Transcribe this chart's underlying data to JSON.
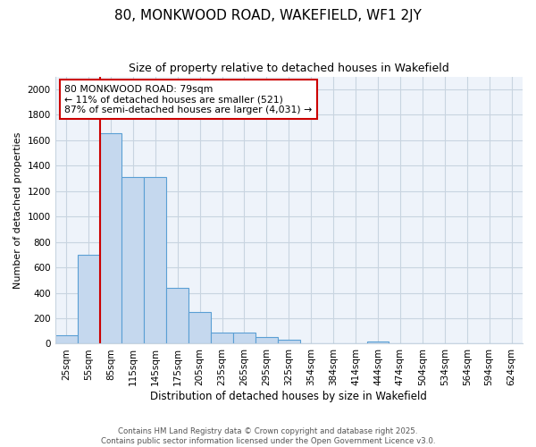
{
  "title": "80, MONKWOOD ROAD, WAKEFIELD, WF1 2JY",
  "subtitle": "Size of property relative to detached houses in Wakefield",
  "xlabel": "Distribution of detached houses by size in Wakefield",
  "ylabel": "Number of detached properties",
  "footer_line1": "Contains HM Land Registry data © Crown copyright and database right 2025.",
  "footer_line2": "Contains public sector information licensed under the Open Government Licence v3.0.",
  "categories": [
    "25sqm",
    "55sqm",
    "85sqm",
    "115sqm",
    "145sqm",
    "175sqm",
    "205sqm",
    "235sqm",
    "265sqm",
    "295sqm",
    "325sqm",
    "354sqm",
    "384sqm",
    "414sqm",
    "444sqm",
    "474sqm",
    "504sqm",
    "534sqm",
    "564sqm",
    "594sqm",
    "624sqm"
  ],
  "values": [
    65,
    700,
    1655,
    1310,
    1310,
    440,
    250,
    90,
    85,
    50,
    30,
    0,
    0,
    0,
    20,
    0,
    0,
    0,
    0,
    0,
    0
  ],
  "bar_color": "#c5d8ee",
  "bar_edge_color": "#5a9fd4",
  "plot_bg_color": "#eef3fa",
  "background_color": "#ffffff",
  "grid_color": "#c8d4e0",
  "annotation_text": "80 MONKWOOD ROAD: 79sqm\n← 11% of detached houses are smaller (521)\n87% of semi-detached houses are larger (4,031) →",
  "annotation_box_color": "#ffffff",
  "annotation_box_edge": "#cc0000",
  "property_line_color": "#cc0000",
  "property_line_bar_index": 2,
  "ylim": [
    0,
    2100
  ],
  "yticks": [
    0,
    200,
    400,
    600,
    800,
    1000,
    1200,
    1400,
    1600,
    1800,
    2000
  ],
  "title_fontsize": 11,
  "subtitle_fontsize": 9,
  "tick_fontsize": 7.5,
  "ylabel_fontsize": 8,
  "xlabel_fontsize": 8.5,
  "footer_fontsize": 6.2,
  "annotation_fontsize": 7.8
}
